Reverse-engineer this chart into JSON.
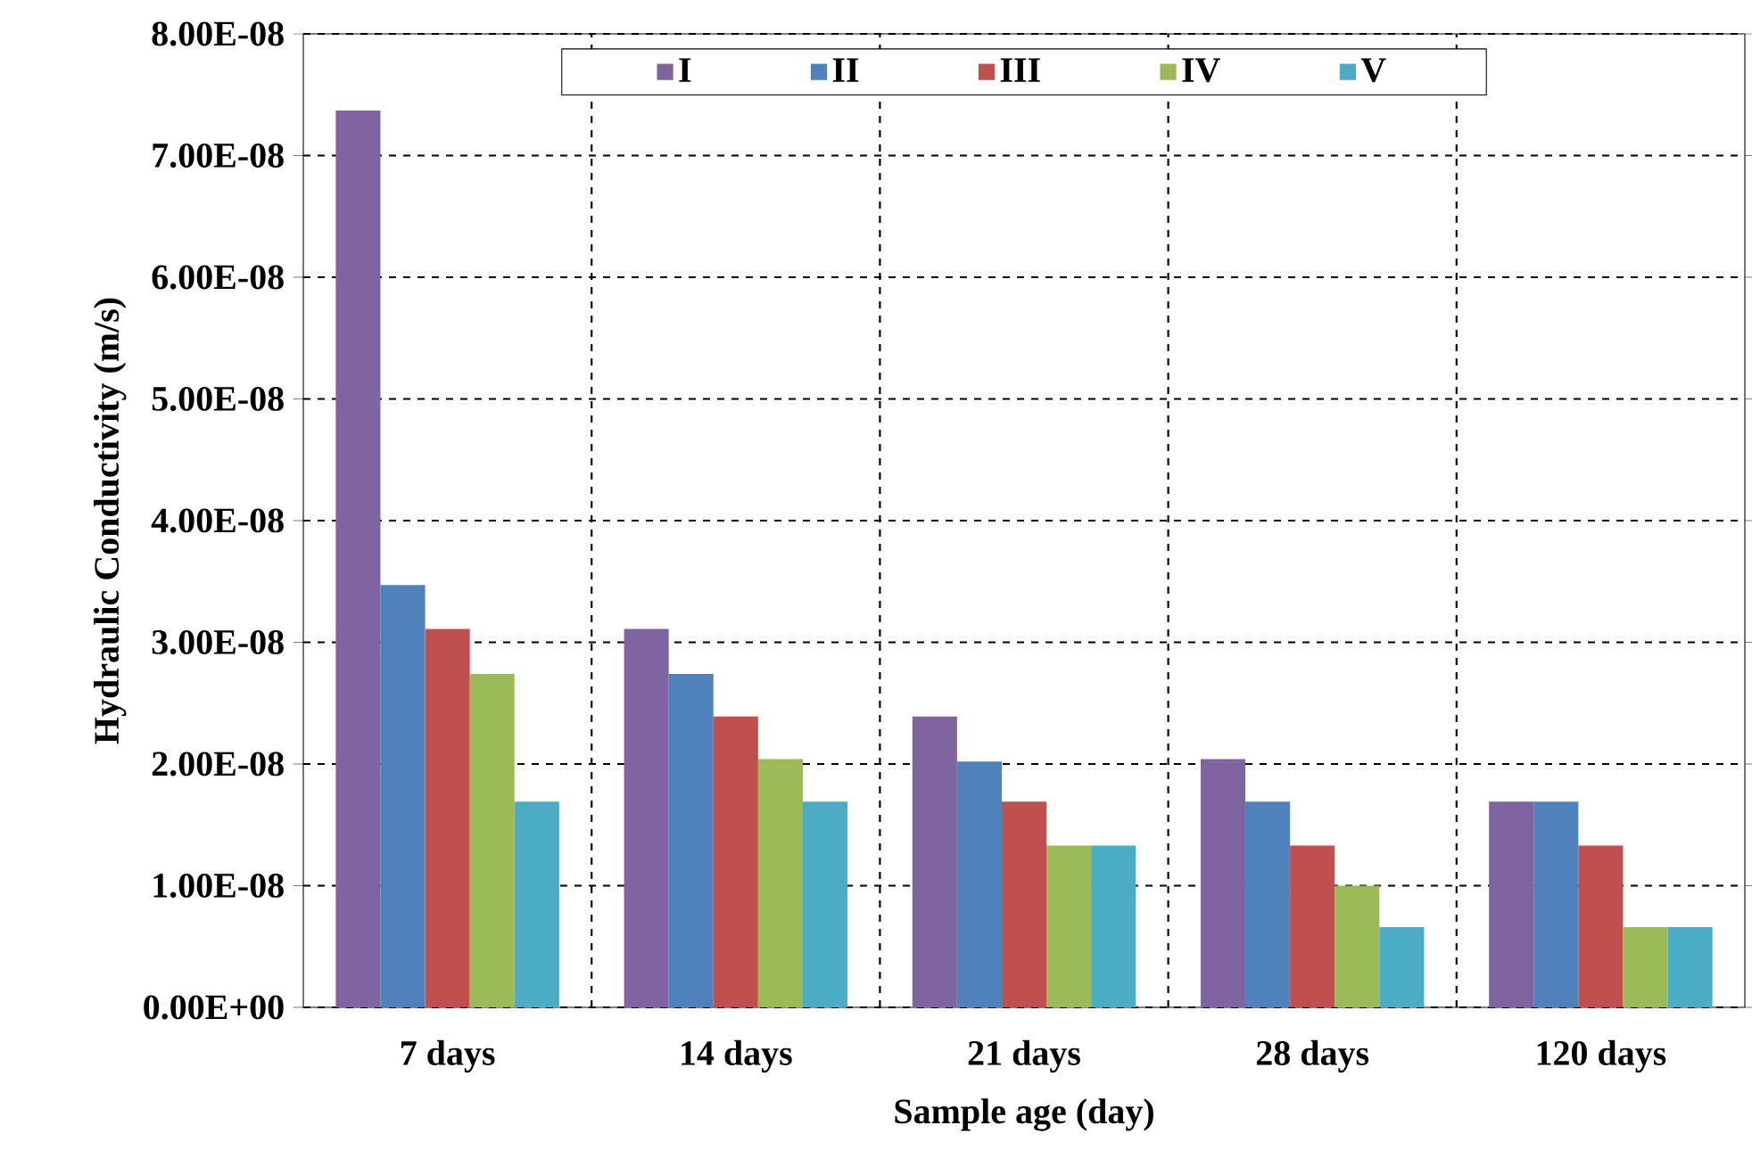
{
  "chart_data": {
    "type": "bar",
    "xlabel": "Sample age (day)",
    "ylabel": "Hydraulic Conductivity (m/s)",
    "categories": [
      "7 days",
      "14 days",
      "21 days",
      "28 days",
      "120 days"
    ],
    "series": [
      {
        "name": "I",
        "color": "#8064a2",
        "values": [
          7.37e-08,
          3.11e-08,
          2.39e-08,
          2.04e-08,
          1.69e-08
        ]
      },
      {
        "name": "II",
        "color": "#4f81bd",
        "values": [
          3.47e-08,
          2.74e-08,
          2.02e-08,
          1.69e-08,
          1.69e-08
        ]
      },
      {
        "name": "III",
        "color": "#c0504d",
        "values": [
          3.11e-08,
          2.39e-08,
          1.69e-08,
          1.33e-08,
          1.33e-08
        ]
      },
      {
        "name": "IV",
        "color": "#9bbb59",
        "values": [
          2.74e-08,
          2.04e-08,
          1.33e-08,
          1e-08,
          6.6e-09
        ]
      },
      {
        "name": "V",
        "color": "#4bacc6",
        "values": [
          1.69e-08,
          1.69e-08,
          1.33e-08,
          6.6e-09,
          6.6e-09
        ]
      }
    ],
    "ylim": [
      0,
      8e-08
    ],
    "yticks": [
      {
        "value": 0,
        "label": "0.00E+00"
      },
      {
        "value": 1e-08,
        "label": "1.00E-08"
      },
      {
        "value": 2e-08,
        "label": "2.00E-08"
      },
      {
        "value": 3e-08,
        "label": "3.00E-08"
      },
      {
        "value": 4e-08,
        "label": "4.00E-08"
      },
      {
        "value": 5e-08,
        "label": "5.00E-08"
      },
      {
        "value": 6e-08,
        "label": "6.00E-08"
      },
      {
        "value": 7e-08,
        "label": "7.00E-08"
      },
      {
        "value": 8e-08,
        "label": "8.00E-08"
      }
    ],
    "grid": true,
    "legend": "top"
  }
}
